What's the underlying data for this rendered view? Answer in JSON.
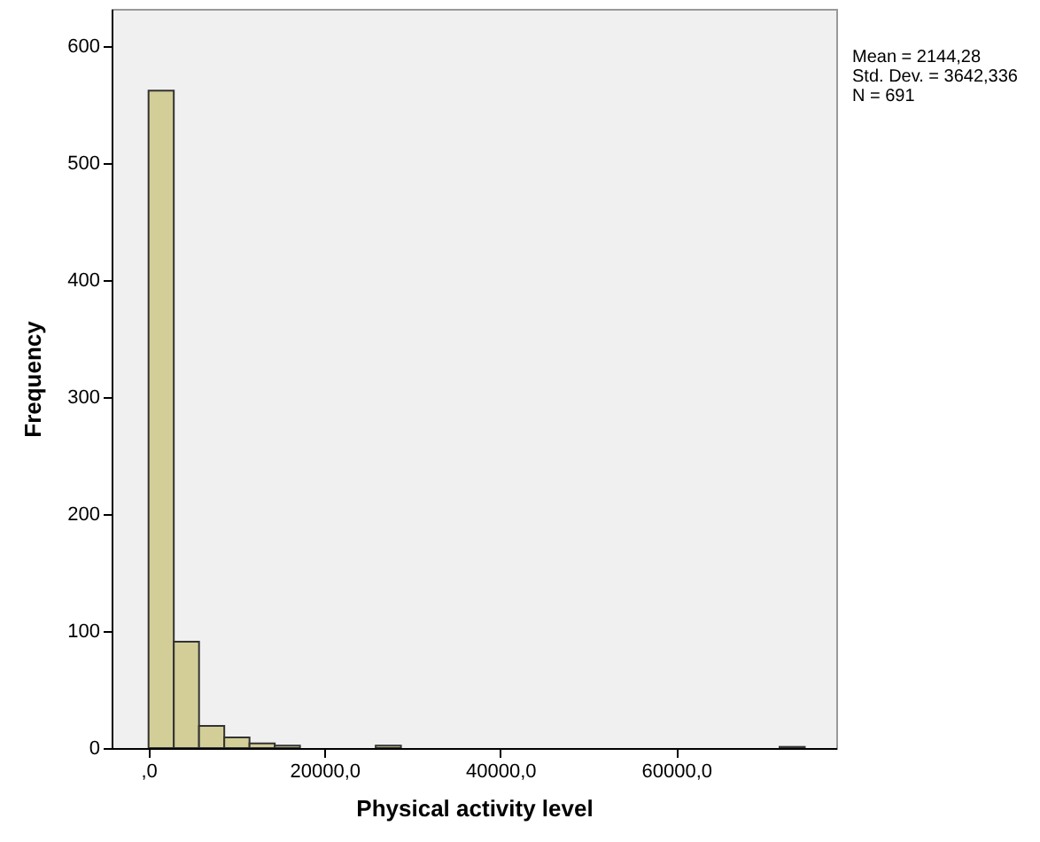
{
  "chart_data": {
    "type": "histogram",
    "xlabel": "Physical activity level",
    "ylabel": "Frequency",
    "bins": [
      0,
      2870,
      5740,
      8610,
      11480,
      14350,
      17220,
      20090,
      22960,
      25830,
      28700,
      31570,
      34440,
      37310,
      40180,
      43050,
      45920,
      48790,
      51660,
      54530,
      57400,
      60270,
      63140,
      66010,
      68880,
      71750,
      74620
    ],
    "values": [
      562,
      91,
      19,
      9,
      4,
      2,
      0,
      0,
      0,
      2,
      0,
      0,
      0,
      0,
      0,
      0,
      0,
      0,
      0,
      0,
      0,
      0,
      0,
      0,
      0,
      1
    ],
    "color": "#d3ce97",
    "xlim": [
      -4200,
      78200
    ],
    "ylim": [
      0,
      632
    ],
    "xticks": [
      {
        "value": 0,
        "label": ",0"
      },
      {
        "value": 20000,
        "label": "20000,0"
      },
      {
        "value": 40000,
        "label": "40000,0"
      },
      {
        "value": 60000,
        "label": "60000,0"
      }
    ],
    "yticks": [
      0,
      100,
      200,
      300,
      400,
      500,
      600
    ],
    "grid": false,
    "annotations": [
      "Mean = 2144,28",
      "Std. Dev. = 3642,336",
      "N = 691"
    ]
  }
}
